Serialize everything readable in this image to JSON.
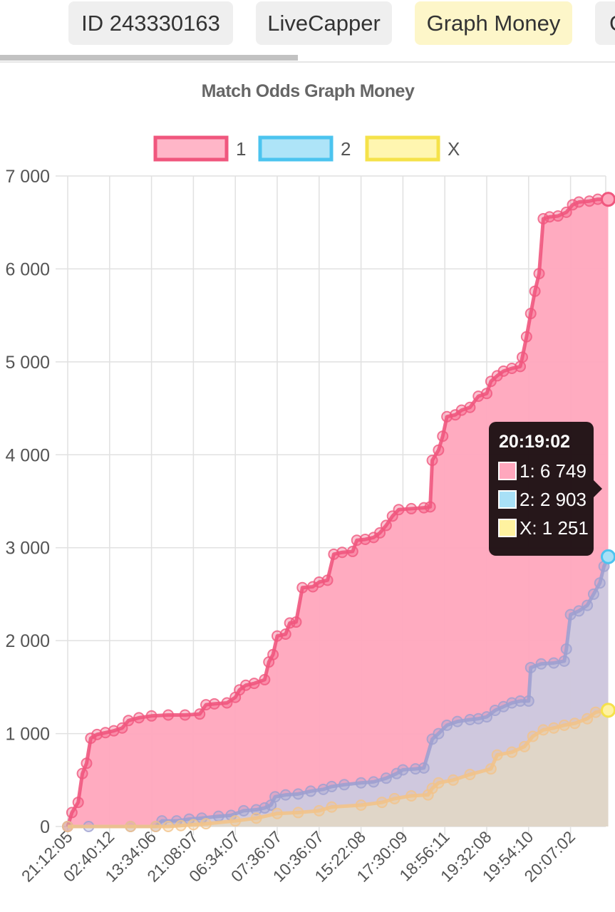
{
  "tabs": [
    {
      "label": "ID 243330163",
      "active": false
    },
    {
      "label": "LiveCapper",
      "active": false
    },
    {
      "label": "Graph Money",
      "active": true
    },
    {
      "label": "G",
      "active": false
    }
  ],
  "tooltip": {
    "title": "20:19:02",
    "rows": [
      {
        "label": "1: 6 749",
        "color": "#ffa7bd"
      },
      {
        "label": "2: 2 903",
        "color": "#a8e0f6"
      },
      {
        "label": "X: 1 251",
        "color": "#fff2a0"
      }
    ]
  },
  "chart_data": {
    "type": "line",
    "title": "Match Odds Graph Money",
    "ylim": [
      0,
      7000
    ],
    "yticks": [
      0,
      1000,
      2000,
      3000,
      4000,
      5000,
      6000,
      7000
    ],
    "ytick_labels": [
      "0",
      "1 000",
      "2 000",
      "3 000",
      "4 000",
      "5 000",
      "6 000",
      "7 000"
    ],
    "x_ticks": [
      "21:12:05",
      "02:40:12",
      "13:34:06",
      "21:08:07",
      "06:34:07",
      "07:36:07",
      "10:36:07",
      "15:22:08",
      "17:30:09",
      "18:56:11",
      "19:32:08",
      "19:54:10",
      "20:07:02"
    ],
    "x_tick_positions": [
      0,
      1,
      2,
      3,
      4,
      5,
      6,
      7,
      8,
      9,
      10,
      11,
      12
    ],
    "x_max": 12.9,
    "grid": true,
    "legend": "top",
    "fill": true,
    "series": [
      {
        "name": "1",
        "color": "#f0577e",
        "fill": "#ffa7bd",
        "points": [
          [
            0,
            0
          ],
          [
            0.1,
            150
          ],
          [
            0.25,
            260
          ],
          [
            0.35,
            570
          ],
          [
            0.45,
            680
          ],
          [
            0.55,
            950
          ],
          [
            0.7,
            990
          ],
          [
            0.9,
            1010
          ],
          [
            1.1,
            1030
          ],
          [
            1.3,
            1060
          ],
          [
            1.45,
            1140
          ],
          [
            1.7,
            1170
          ],
          [
            2.0,
            1190
          ],
          [
            2.4,
            1200
          ],
          [
            2.8,
            1200
          ],
          [
            3.15,
            1210
          ],
          [
            3.3,
            1310
          ],
          [
            3.5,
            1320
          ],
          [
            3.8,
            1330
          ],
          [
            4.0,
            1390
          ],
          [
            4.1,
            1470
          ],
          [
            4.25,
            1520
          ],
          [
            4.45,
            1540
          ],
          [
            4.7,
            1580
          ],
          [
            4.8,
            1770
          ],
          [
            4.9,
            1850
          ],
          [
            5.0,
            2050
          ],
          [
            5.2,
            2070
          ],
          [
            5.3,
            2190
          ],
          [
            5.45,
            2200
          ],
          [
            5.6,
            2570
          ],
          [
            5.85,
            2580
          ],
          [
            6.0,
            2630
          ],
          [
            6.2,
            2650
          ],
          [
            6.35,
            2930
          ],
          [
            6.55,
            2950
          ],
          [
            6.8,
            2960
          ],
          [
            6.9,
            3080
          ],
          [
            7.1,
            3090
          ],
          [
            7.3,
            3110
          ],
          [
            7.45,
            3160
          ],
          [
            7.6,
            3240
          ],
          [
            7.75,
            3340
          ],
          [
            7.9,
            3410
          ],
          [
            8.2,
            3420
          ],
          [
            8.5,
            3430
          ],
          [
            8.65,
            3440
          ],
          [
            8.7,
            3940
          ],
          [
            8.85,
            4050
          ],
          [
            8.95,
            4200
          ],
          [
            9.05,
            4410
          ],
          [
            9.25,
            4430
          ],
          [
            9.4,
            4480
          ],
          [
            9.6,
            4510
          ],
          [
            9.8,
            4630
          ],
          [
            10.0,
            4660
          ],
          [
            10.1,
            4790
          ],
          [
            10.25,
            4850
          ],
          [
            10.4,
            4900
          ],
          [
            10.6,
            4930
          ],
          [
            10.8,
            4950
          ],
          [
            10.85,
            5050
          ],
          [
            10.95,
            5270
          ],
          [
            11.05,
            5520
          ],
          [
            11.15,
            5760
          ],
          [
            11.25,
            5950
          ],
          [
            11.35,
            6540
          ],
          [
            11.5,
            6560
          ],
          [
            11.7,
            6570
          ],
          [
            11.9,
            6610
          ],
          [
            12.05,
            6690
          ],
          [
            12.2,
            6720
          ],
          [
            12.45,
            6730
          ],
          [
            12.65,
            6750
          ],
          [
            12.9,
            6749
          ]
        ]
      },
      {
        "name": "2",
        "color": "#9ea0d0",
        "fill": "#a8e0f6",
        "points": [
          [
            0,
            0
          ],
          [
            0.5,
            0
          ],
          [
            1.5,
            0
          ],
          [
            2.1,
            0
          ],
          [
            2.25,
            60
          ],
          [
            2.6,
            60
          ],
          [
            2.9,
            80
          ],
          [
            3.2,
            90
          ],
          [
            3.6,
            110
          ],
          [
            3.9,
            120
          ],
          [
            4.2,
            170
          ],
          [
            4.5,
            180
          ],
          [
            4.7,
            200
          ],
          [
            4.85,
            230
          ],
          [
            4.95,
            320
          ],
          [
            5.2,
            340
          ],
          [
            5.5,
            350
          ],
          [
            5.8,
            380
          ],
          [
            6.1,
            400
          ],
          [
            6.3,
            430
          ],
          [
            6.6,
            450
          ],
          [
            7.0,
            470
          ],
          [
            7.3,
            480
          ],
          [
            7.6,
            520
          ],
          [
            7.85,
            570
          ],
          [
            8.0,
            610
          ],
          [
            8.3,
            620
          ],
          [
            8.5,
            630
          ],
          [
            8.7,
            940
          ],
          [
            8.85,
            1000
          ],
          [
            9.05,
            1090
          ],
          [
            9.3,
            1130
          ],
          [
            9.6,
            1150
          ],
          [
            9.8,
            1160
          ],
          [
            10.0,
            1180
          ],
          [
            10.2,
            1250
          ],
          [
            10.4,
            1290
          ],
          [
            10.6,
            1330
          ],
          [
            10.8,
            1350
          ],
          [
            11.0,
            1350
          ],
          [
            11.05,
            1710
          ],
          [
            11.3,
            1750
          ],
          [
            11.6,
            1760
          ],
          [
            11.85,
            1780
          ],
          [
            11.9,
            1910
          ],
          [
            12.0,
            2280
          ],
          [
            12.2,
            2320
          ],
          [
            12.4,
            2380
          ],
          [
            12.55,
            2500
          ],
          [
            12.7,
            2620
          ],
          [
            12.8,
            2800
          ],
          [
            12.9,
            2903
          ]
        ]
      },
      {
        "name": "X",
        "color": "#f2c38a",
        "fill": "#fff2a0",
        "points": [
          [
            0,
            0
          ],
          [
            1.5,
            0
          ],
          [
            2.1,
            0
          ],
          [
            2.4,
            0
          ],
          [
            2.7,
            10
          ],
          [
            3.0,
            20
          ],
          [
            3.3,
            30
          ],
          [
            4.0,
            60
          ],
          [
            4.5,
            90
          ],
          [
            5.0,
            140
          ],
          [
            5.5,
            150
          ],
          [
            6.0,
            170
          ],
          [
            6.3,
            210
          ],
          [
            7.0,
            230
          ],
          [
            7.5,
            260
          ],
          [
            7.8,
            300
          ],
          [
            8.2,
            330
          ],
          [
            8.6,
            340
          ],
          [
            8.7,
            410
          ],
          [
            8.85,
            470
          ],
          [
            9.2,
            500
          ],
          [
            9.6,
            560
          ],
          [
            10.1,
            620
          ],
          [
            10.25,
            770
          ],
          [
            10.6,
            800
          ],
          [
            10.9,
            860
          ],
          [
            11.1,
            970
          ],
          [
            11.35,
            1040
          ],
          [
            11.6,
            1060
          ],
          [
            11.85,
            1090
          ],
          [
            12.1,
            1110
          ],
          [
            12.4,
            1160
          ],
          [
            12.6,
            1230
          ],
          [
            12.9,
            1251
          ]
        ]
      }
    ]
  }
}
